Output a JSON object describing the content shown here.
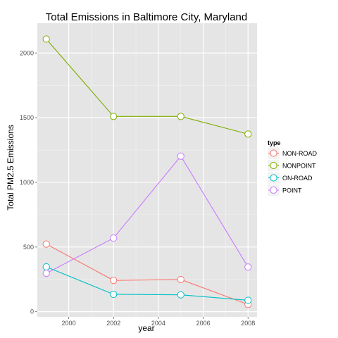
{
  "chart_data": {
    "type": "line",
    "title": "Total Emissions in Baltimore City, Maryland",
    "xlabel": "year",
    "ylabel": "Total PM2.5 Emissions",
    "x": [
      1999,
      2002,
      2005,
      2008
    ],
    "xlim": [
      1998.6,
      2008.4
    ],
    "ylim": [
      -40,
      2230
    ],
    "xticks": [
      2000,
      2002,
      2004,
      2006,
      2008
    ],
    "yticks": [
      0,
      500,
      1000,
      1500,
      2000
    ],
    "grid": true,
    "legend": {
      "title": "type",
      "position": "right"
    },
    "series": [
      {
        "name": "NON-ROAD",
        "color": "#F8766D",
        "values": [
          522.94,
          242.26,
          248.93,
          55.82
        ]
      },
      {
        "name": "NONPOINT",
        "color": "#7CAE00",
        "values": [
          2107.63,
          1509.5,
          1509.5,
          1373.21
        ]
      },
      {
        "name": "ON-ROAD",
        "color": "#00BFC4",
        "values": [
          346.82,
          134.31,
          130.43,
          88.28
        ]
      },
      {
        "name": "POINT",
        "color": "#C77CFF",
        "values": [
          296.8,
          569.26,
          1202.49,
          344.98
        ]
      }
    ]
  }
}
